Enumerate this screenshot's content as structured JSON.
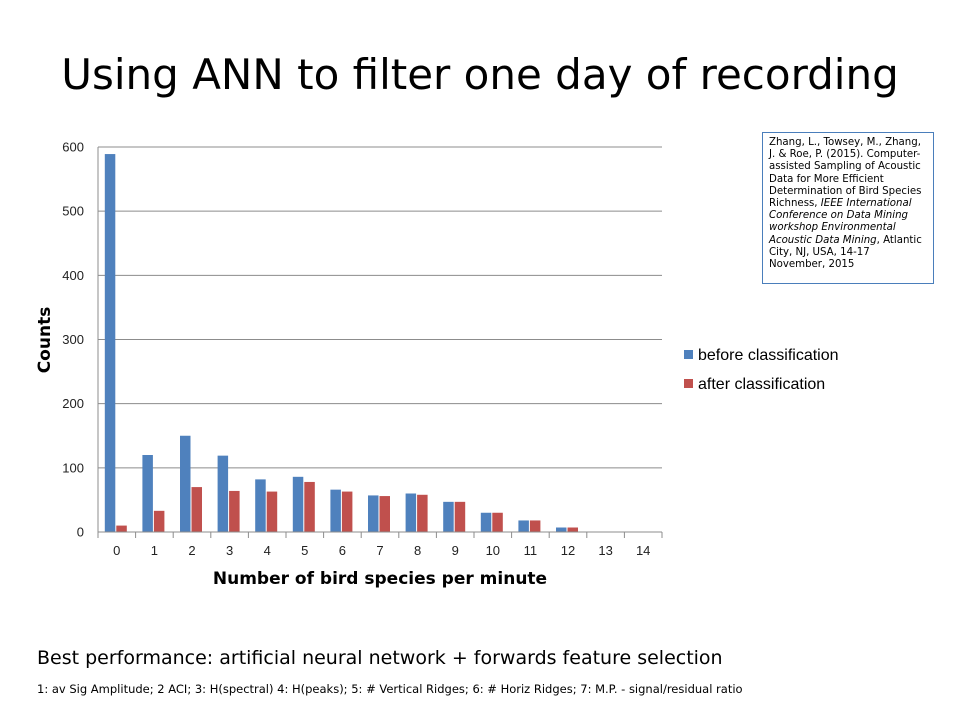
{
  "slide": {
    "title": "Using ANN to filter one day of recording",
    "footer_main": "Best performance: artificial neural network + forwards feature selection",
    "footer_note": "1: av Sig Amplitude; 2 ACI; 3: H(spectral) 4: H(peaks); 5: # Vertical Ridges; 6: # Horiz Ridges; 7: M.P. - signal/residual ratio"
  },
  "citation": {
    "plain_1": "Zhang, L., Towsey, M., Zhang, J. & Roe, P. (2015). Computer-assisted Sampling of Acoustic Data for More Efficient Determination of Bird Species Richness, ",
    "italic": "IEEE International Conference on Data Mining workshop Environmental Acoustic Data Mining",
    "plain_2": ", Atlantic City, NJ, USA, 14-17 November, 2015"
  },
  "chart_data": {
    "type": "bar",
    "xlabel": "Number of bird species per minute",
    "ylabel": "Counts",
    "categories": [
      "0",
      "1",
      "2",
      "3",
      "4",
      "5",
      "6",
      "7",
      "8",
      "9",
      "10",
      "11",
      "12",
      "13",
      "14"
    ],
    "yticks": [
      "0",
      "100",
      "200",
      "300",
      "400",
      "500",
      "600"
    ],
    "ylim": [
      0,
      600
    ],
    "grid": true,
    "legend_position": "right",
    "series": [
      {
        "name": "before classification",
        "color": "#4f81bd",
        "values": [
          589,
          120,
          150,
          119,
          82,
          86,
          66,
          57,
          60,
          47,
          30,
          18,
          7,
          0,
          0
        ]
      },
      {
        "name": "after classification",
        "color": "#c0504d",
        "values": [
          10,
          33,
          70,
          64,
          63,
          78,
          63,
          56,
          58,
          47,
          30,
          18,
          7,
          0,
          0
        ]
      }
    ]
  }
}
